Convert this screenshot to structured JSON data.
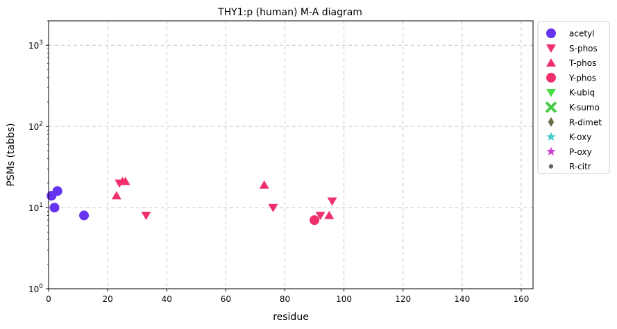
{
  "chart_data": {
    "type": "scatter",
    "title": "THY1:p (human) M-A diagram",
    "xlabel": "residue",
    "ylabel": "PSMs (tabbs)",
    "xlim": [
      0,
      164
    ],
    "ylim": [
      1,
      2000
    ],
    "yscale": "log",
    "grid": true,
    "legend_position": "outside-right",
    "x_ticks": [
      0,
      20,
      40,
      60,
      80,
      100,
      120,
      140,
      160
    ],
    "y_ticks": [
      1,
      10,
      100,
      1000
    ],
    "y_tick_labels": [
      {
        "base": "10",
        "exp": "0"
      },
      {
        "base": "10",
        "exp": "1"
      },
      {
        "base": "10",
        "exp": "2"
      },
      {
        "base": "10",
        "exp": "3"
      }
    ],
    "series": [
      {
        "name": "acetyl",
        "marker": "circle",
        "color": "#6633ee",
        "points": [
          {
            "x": 1,
            "y": 14
          },
          {
            "x": 2,
            "y": 10
          },
          {
            "x": 3,
            "y": 16
          },
          {
            "x": 12,
            "y": 8
          }
        ]
      },
      {
        "name": "S-phos",
        "marker": "triangle-down",
        "color": "#f0306a",
        "points": [
          {
            "x": 24,
            "y": 20
          },
          {
            "x": 33,
            "y": 8
          },
          {
            "x": 76,
            "y": 10
          },
          {
            "x": 92,
            "y": 8
          },
          {
            "x": 96,
            "y": 12
          }
        ]
      },
      {
        "name": "T-phos",
        "marker": "triangle-up",
        "color": "#f0306a",
        "points": [
          {
            "x": 23,
            "y": 14
          },
          {
            "x": 25,
            "y": 21
          },
          {
            "x": 26,
            "y": 21
          },
          {
            "x": 73,
            "y": 19
          },
          {
            "x": 95,
            "y": 8
          }
        ]
      },
      {
        "name": "Y-phos",
        "marker": "circle",
        "color": "#f0306a",
        "points": [
          {
            "x": 90,
            "y": 7
          }
        ]
      },
      {
        "name": "K-ubiq",
        "marker": "triangle-down",
        "color": "#44dd44",
        "points": []
      },
      {
        "name": "K-sumo",
        "marker": "x",
        "color": "#44cc44",
        "points": []
      },
      {
        "name": "R-dimet",
        "marker": "diamond",
        "color": "#6b6b47",
        "points": []
      },
      {
        "name": "K-oxy",
        "marker": "star",
        "color": "#44cccc",
        "points": []
      },
      {
        "name": "P-oxy",
        "marker": "star",
        "color": "#cc44cc",
        "points": []
      },
      {
        "name": "R-citr",
        "marker": "dot",
        "color": "#666666",
        "points": []
      }
    ]
  }
}
